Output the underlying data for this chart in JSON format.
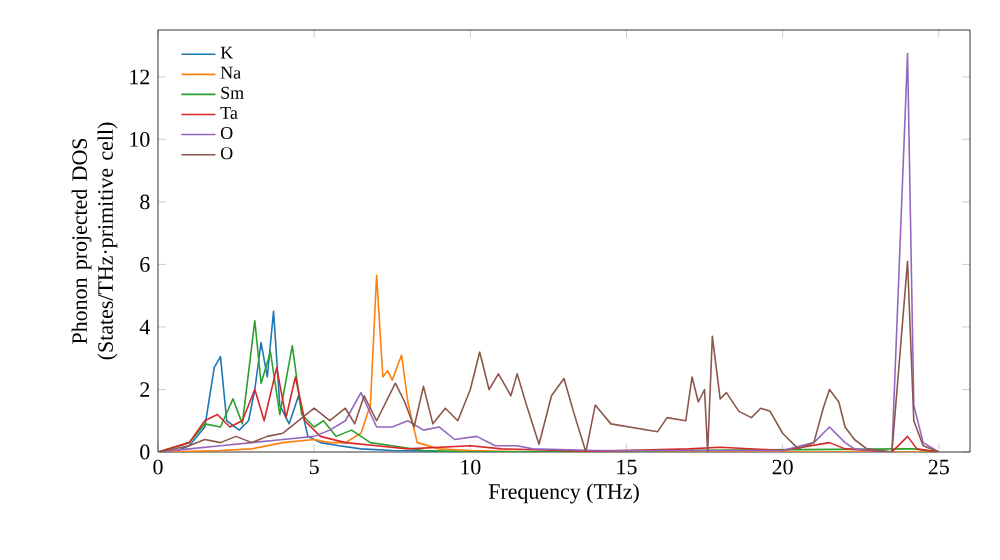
{
  "chart_data": {
    "type": "line",
    "xlabel": "Frequency (THz)",
    "ylabel": "Phonon projected DOS (States/THz·primitive cell)",
    "xlim": [
      0,
      26
    ],
    "ylim": [
      0,
      13.5
    ],
    "xticks": [
      0,
      5,
      10,
      15,
      20,
      25
    ],
    "yticks": [
      0,
      2,
      4,
      6,
      8,
      10,
      12
    ],
    "legend": "top left",
    "series": [
      {
        "name": "K",
        "color": "#1f77b4",
        "x": [
          0,
          0.5,
          1,
          1.5,
          1.8,
          2,
          2.2,
          2.6,
          2.9,
          3.1,
          3.3,
          3.5,
          3.7,
          3.9,
          4.2,
          4.5,
          4.8,
          5.2,
          5.8,
          6.5,
          7.5,
          9,
          12
        ],
        "values": [
          0,
          0,
          0.2,
          0.8,
          2.7,
          3.05,
          1.0,
          0.7,
          1.0,
          2.0,
          3.5,
          2.4,
          4.5,
          1.5,
          0.9,
          1.8,
          0.5,
          0.3,
          0.2,
          0.1,
          0.05,
          0.02,
          0
        ]
      },
      {
        "name": "Na",
        "color": "#ff7f0e",
        "x": [
          0,
          2,
          3,
          4,
          5,
          5.5,
          6,
          6.5,
          6.8,
          7,
          7.2,
          7.35,
          7.5,
          7.8,
          8,
          8.3,
          9,
          10,
          12,
          25
        ],
        "values": [
          0,
          0.05,
          0.1,
          0.3,
          0.4,
          0.3,
          0.3,
          0.6,
          1.5,
          5.65,
          2.4,
          2.6,
          2.3,
          3.1,
          1.6,
          0.3,
          0.1,
          0.05,
          0,
          0
        ]
      },
      {
        "name": "Sm",
        "color": "#2ca02c",
        "x": [
          0,
          1,
          1.5,
          2,
          2.4,
          2.7,
          3.1,
          3.3,
          3.6,
          3.9,
          4.3,
          4.6,
          5,
          5.3,
          5.7,
          6.2,
          6.8,
          7.5,
          8.5,
          10,
          24,
          24.2,
          25
        ],
        "values": [
          0,
          0.3,
          0.9,
          0.8,
          1.7,
          0.9,
          4.2,
          2.2,
          3.2,
          1.2,
          3.4,
          1.2,
          0.8,
          1.0,
          0.5,
          0.7,
          0.3,
          0.2,
          0.05,
          0,
          0.1,
          0.1,
          0
        ]
      },
      {
        "name": "Ta",
        "color": "#d62728",
        "x": [
          0,
          1,
          1.5,
          1.9,
          2.3,
          2.7,
          3.1,
          3.4,
          3.8,
          4.1,
          4.4,
          4.7,
          5.2,
          6,
          7,
          8,
          10,
          11,
          14,
          17,
          18,
          20,
          21.5,
          22,
          23.5,
          24,
          24.3,
          25
        ],
        "values": [
          0,
          0.3,
          1.0,
          1.2,
          0.8,
          1.0,
          2.0,
          1.0,
          2.7,
          1.1,
          2.4,
          1.0,
          0.5,
          0.3,
          0.2,
          0.1,
          0.2,
          0.1,
          0.02,
          0.1,
          0.15,
          0.05,
          0.3,
          0.1,
          0,
          0.5,
          0.1,
          0
        ]
      },
      {
        "name": "O",
        "color": "#9467bd",
        "x": [
          0,
          1,
          2,
          3,
          4,
          5,
          5.5,
          6,
          6.5,
          7,
          7.5,
          8,
          8.5,
          9,
          9.5,
          10.2,
          10.8,
          11.5,
          12,
          14,
          17,
          20,
          21,
          21.5,
          22,
          22.3,
          23.5,
          24,
          24.2,
          24.5,
          25
        ],
        "values": [
          0,
          0.1,
          0.2,
          0.3,
          0.4,
          0.5,
          0.7,
          1.0,
          1.9,
          0.8,
          0.8,
          1.0,
          0.7,
          0.8,
          0.4,
          0.5,
          0.2,
          0.2,
          0.1,
          0.05,
          0.05,
          0.05,
          0.3,
          0.8,
          0.3,
          0.1,
          0,
          12.75,
          1.5,
          0.3,
          0
        ]
      },
      {
        "name": "O",
        "color": "#8c564b",
        "x": [
          0,
          1,
          1.5,
          2,
          2.5,
          3,
          3.5,
          4,
          4.5,
          5,
          5.5,
          6,
          6.3,
          6.6,
          7,
          7.3,
          7.6,
          7.9,
          8.2,
          8.5,
          8.8,
          9.2,
          9.6,
          10,
          10.3,
          10.6,
          10.9,
          11.3,
          11.5,
          11.8,
          12.2,
          12.6,
          13,
          13.3,
          13.7,
          14,
          14.5,
          16,
          16.3,
          16.9,
          17.1,
          17.3,
          17.5,
          17.6,
          17.75,
          18,
          18.2,
          18.6,
          19,
          19.3,
          19.6,
          20,
          20.5,
          21,
          21.3,
          21.5,
          21.8,
          22,
          22.3,
          22.7,
          23.5,
          24,
          24.2,
          24.5,
          25
        ],
        "values": [
          0,
          0.2,
          0.4,
          0.3,
          0.5,
          0.3,
          0.5,
          0.6,
          1.0,
          1.4,
          1.0,
          1.4,
          0.9,
          1.8,
          1.0,
          1.6,
          2.2,
          1.6,
          0.8,
          2.1,
          0.9,
          1.4,
          1.0,
          2.0,
          3.2,
          2.0,
          2.5,
          1.8,
          2.5,
          1.5,
          0.25,
          1.8,
          2.35,
          1.3,
          0,
          1.5,
          0.9,
          0.65,
          1.1,
          1.0,
          2.4,
          1.6,
          2.0,
          0,
          3.7,
          1.7,
          1.9,
          1.3,
          1.1,
          1.4,
          1.3,
          0.6,
          0.1,
          0.3,
          1.4,
          2.0,
          1.6,
          0.8,
          0.4,
          0.1,
          0,
          6.1,
          1.0,
          0.2,
          0
        ]
      }
    ]
  }
}
